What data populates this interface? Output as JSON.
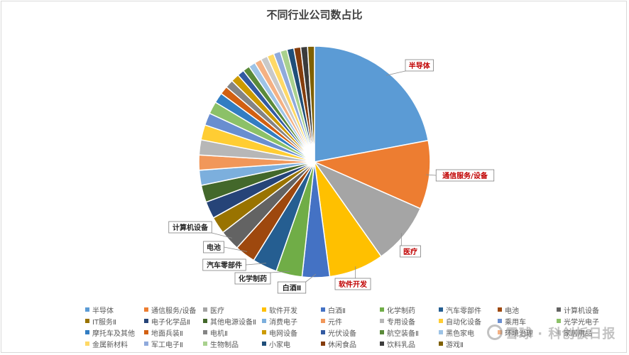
{
  "chart_data": {
    "type": "pie",
    "title": "不同行业公司数占比",
    "slices": [
      {
        "name": "半导体",
        "value": 23.0,
        "color": "#5B9BD5"
      },
      {
        "name": "通信服务/设备",
        "value": 10.0,
        "color": "#ED7D31"
      },
      {
        "name": "医疗",
        "value": 9.0,
        "color": "#A5A5A5"
      },
      {
        "name": "软件开发",
        "value": 8.0,
        "color": "#FFC000"
      },
      {
        "name": "白酒Ⅱ",
        "value": 4.0,
        "color": "#4472C4"
      },
      {
        "name": "化学制药",
        "value": 3.8,
        "color": "#70AD47"
      },
      {
        "name": "汽车零部件",
        "value": 3.6,
        "color": "#255E91"
      },
      {
        "name": "电池",
        "value": 3.0,
        "color": "#9E480E"
      },
      {
        "name": "计算机设备",
        "value": 3.0,
        "color": "#636363"
      },
      {
        "name": "IT服务Ⅱ",
        "value": 2.5,
        "color": "#997300"
      },
      {
        "name": "电子化学品Ⅱ",
        "value": 2.5,
        "color": "#264478"
      },
      {
        "name": "其他电源设备Ⅱ",
        "value": 2.5,
        "color": "#43682B"
      },
      {
        "name": "消费电子",
        "value": 2.2,
        "color": "#7CAFDD"
      },
      {
        "name": "元件",
        "value": 2.2,
        "color": "#F1975A"
      },
      {
        "name": "专用设备",
        "value": 2.2,
        "color": "#B7B7B7"
      },
      {
        "name": "自动化设备",
        "value": 2.2,
        "color": "#FFCD33"
      },
      {
        "name": "乘用车",
        "value": 1.8,
        "color": "#698ED0"
      },
      {
        "name": "光学光电子",
        "value": 1.8,
        "color": "#8CC168"
      },
      {
        "name": "摩托车及其他",
        "value": 1.5,
        "color": "#327DC2"
      },
      {
        "name": "地面兵装Ⅱ",
        "value": 1.2,
        "color": "#D26012"
      },
      {
        "name": "电机Ⅱ",
        "value": 1.2,
        "color": "#848484"
      },
      {
        "name": "电网设备",
        "value": 1.2,
        "color": "#CC9A00"
      },
      {
        "name": "光伏设备",
        "value": 1.0,
        "color": "#335AA1"
      },
      {
        "name": "航空装备Ⅱ",
        "value": 1.0,
        "color": "#5A8A39"
      },
      {
        "name": "黑色家电",
        "value": 1.0,
        "color": "#9DC3E6"
      },
      {
        "name": "环境治理",
        "value": 1.0,
        "color": "#F4B183"
      },
      {
        "name": "家居用品",
        "value": 1.0,
        "color": "#C9C9C9"
      },
      {
        "name": "金属新材料",
        "value": 1.0,
        "color": "#FFD966"
      },
      {
        "name": "军工电子Ⅱ",
        "value": 1.0,
        "color": "#8FAADC"
      },
      {
        "name": "生物制品",
        "value": 1.0,
        "color": "#A9D18E"
      },
      {
        "name": "小家电",
        "value": 1.0,
        "color": "#1F4E79"
      },
      {
        "name": "休闲食品",
        "value": 1.0,
        "color": "#843C0C"
      },
      {
        "name": "饮料乳品",
        "value": 1.0,
        "color": "#3B3B3B"
      },
      {
        "name": "游戏Ⅱ",
        "value": 1.0,
        "color": "#7F6000"
      }
    ],
    "callouts": [
      {
        "slice": 0,
        "text": "半导体",
        "color": "#C00000"
      },
      {
        "slice": 1,
        "text": "通信服务/设备",
        "color": "#C00000"
      },
      {
        "slice": 2,
        "text": "医疗",
        "color": "#C00000"
      },
      {
        "slice": 3,
        "text": "软件开发",
        "color": "#C00000"
      },
      {
        "slice": 4,
        "text": "白酒Ⅱ",
        "color": "#262626"
      },
      {
        "slice": 5,
        "text": "化学制药",
        "color": "#262626"
      },
      {
        "slice": 6,
        "text": "汽车零部件",
        "color": "#262626"
      },
      {
        "slice": 7,
        "text": "电池",
        "color": "#262626"
      },
      {
        "slice": 8,
        "text": "计算机设备",
        "color": "#262626"
      }
    ],
    "legend_position": "bottom"
  },
  "watermark": "雪球 · 科创板日报"
}
